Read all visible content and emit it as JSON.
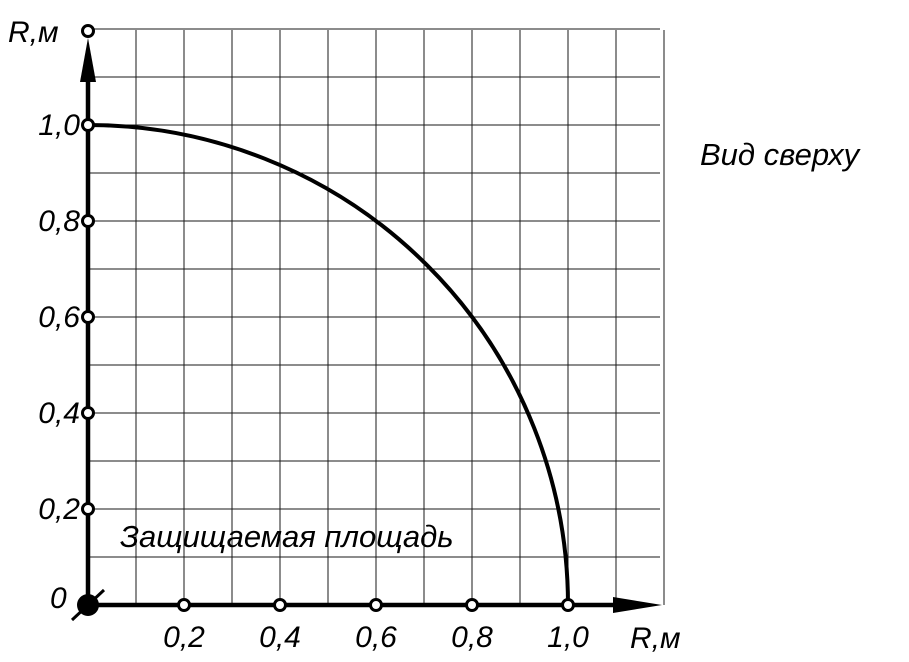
{
  "colors": {
    "background": "#ffffff",
    "ink": "#000000",
    "grid": "#1a1a1a"
  },
  "labels": {
    "y_axis": "R,м",
    "x_axis": "R,м",
    "origin": "0",
    "view": "Вид сверху",
    "area": "Защищаемая площадь"
  },
  "chart_data": {
    "type": "line",
    "xlabel": "R,м",
    "ylabel": "R,м",
    "xlim": [
      0,
      1.2
    ],
    "ylim": [
      0,
      1.2
    ],
    "grid": true,
    "x_ticks": [
      "0,2",
      "0,4",
      "0,6",
      "0,8",
      "1,0"
    ],
    "y_ticks": [
      "0,2",
      "0,4",
      "0,6",
      "0,8",
      "1,0"
    ],
    "origin_label": "0",
    "curve": {
      "shape": "quarter-circle",
      "radius": 1.0,
      "center": [
        0,
        0
      ]
    },
    "annotations": [
      "Вид сверху",
      "Защищаемая площадь"
    ]
  }
}
